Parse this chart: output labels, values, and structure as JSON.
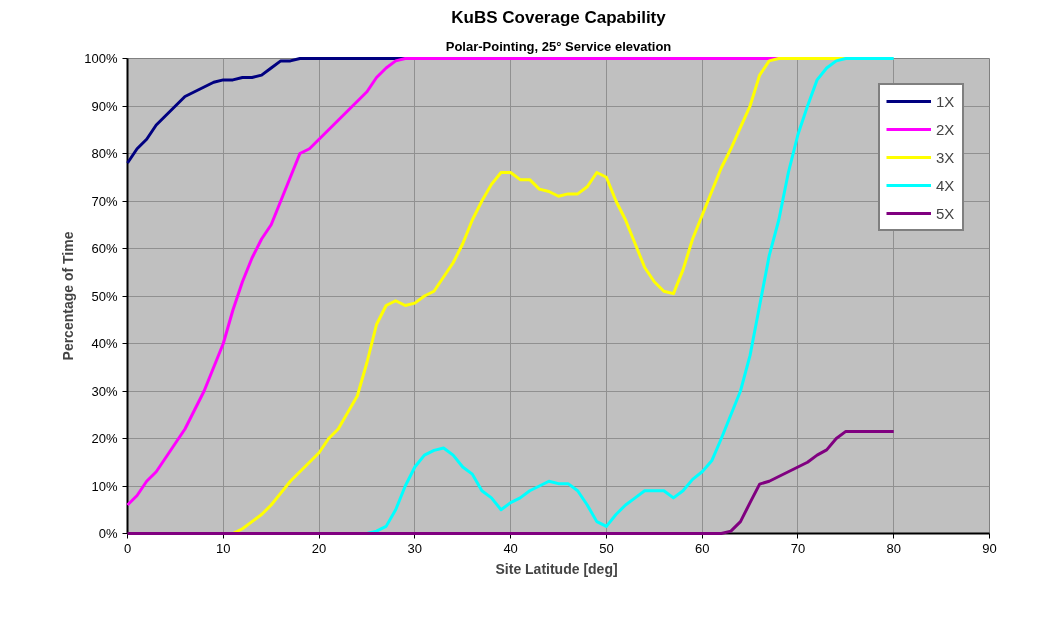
{
  "chart_data": {
    "type": "line",
    "title": "KuBS Coverage Capability",
    "subtitle": "Polar-Pointing, 25° Service elevation",
    "xlabel": "Site Latitude  [deg]",
    "ylabel": "Percentage of Time",
    "x": [
      0,
      1,
      2,
      3,
      4,
      5,
      6,
      7,
      8,
      9,
      10,
      11,
      12,
      13,
      14,
      15,
      16,
      17,
      18,
      19,
      20,
      21,
      22,
      23,
      24,
      25,
      26,
      27,
      28,
      29,
      30,
      31,
      32,
      33,
      34,
      35,
      36,
      37,
      38,
      39,
      40,
      41,
      42,
      43,
      44,
      45,
      46,
      47,
      48,
      49,
      50,
      51,
      52,
      53,
      54,
      55,
      56,
      57,
      58,
      59,
      60,
      61,
      62,
      63,
      64,
      65,
      66,
      67,
      68,
      69,
      70,
      71,
      72,
      73,
      74,
      75,
      76,
      77,
      78,
      79,
      80
    ],
    "series": [
      {
        "name": "1X",
        "color": "#000080",
        "values": [
          78,
          81,
          83,
          86,
          88,
          90,
          92,
          93,
          94,
          95,
          95.5,
          95.5,
          96,
          96,
          96.5,
          98,
          99.5,
          99.5,
          100,
          100,
          100,
          100,
          100,
          100,
          100,
          100,
          100,
          100,
          100,
          100,
          null,
          null,
          null,
          null,
          null,
          null,
          null,
          null,
          null,
          null,
          null,
          null,
          null,
          null,
          null,
          null,
          null,
          null,
          null,
          null,
          null,
          null,
          null,
          null,
          null,
          null,
          null,
          null,
          null,
          null,
          null,
          null,
          null,
          null,
          null,
          null,
          null,
          null,
          null,
          null,
          null,
          null,
          null,
          null,
          null,
          null,
          null,
          null,
          null,
          null,
          null
        ]
      },
      {
        "name": "2X",
        "color": "#ff00ff",
        "values": [
          6,
          8,
          11,
          13,
          16,
          19,
          22,
          26,
          30,
          35,
          40,
          47,
          53,
          58,
          62,
          65,
          70,
          75,
          80,
          81,
          83,
          85,
          87,
          89,
          91,
          93,
          96,
          98,
          99.5,
          100,
          100,
          100,
          100,
          100,
          100,
          100,
          100,
          100,
          100,
          100,
          100,
          100,
          100,
          100,
          100,
          100,
          100,
          100,
          100,
          100,
          100,
          100,
          100,
          100,
          100,
          100,
          100,
          100,
          100,
          100,
          100,
          100,
          100,
          100,
          100,
          100,
          100,
          100,
          100,
          null,
          null,
          null,
          null,
          null,
          null,
          null,
          null,
          null,
          null,
          null,
          null
        ]
      },
      {
        "name": "3X",
        "color": "#ffff00",
        "values": [
          null,
          null,
          null,
          null,
          null,
          null,
          null,
          null,
          null,
          null,
          null,
          0,
          1,
          2.5,
          4,
          6,
          8.5,
          11,
          13,
          15,
          17,
          20,
          22,
          25.5,
          29,
          36,
          44,
          48,
          49,
          48,
          48.5,
          50,
          51,
          54,
          57,
          61,
          66,
          70,
          73.5,
          76,
          76,
          74.5,
          74.5,
          72.5,
          72,
          71,
          71.5,
          71.5,
          73,
          76,
          75,
          70,
          66,
          61,
          56,
          53,
          51,
          50.5,
          55.5,
          62,
          67,
          72,
          77,
          81,
          85.5,
          90,
          96.5,
          99.5,
          100,
          100,
          100,
          100,
          100,
          100,
          100,
          100,
          null,
          null,
          null,
          null,
          null
        ]
      },
      {
        "name": "4X",
        "color": "#00ffff",
        "values": [
          null,
          null,
          null,
          null,
          null,
          null,
          null,
          null,
          null,
          null,
          null,
          null,
          null,
          null,
          null,
          null,
          null,
          null,
          null,
          null,
          null,
          null,
          null,
          null,
          null,
          0,
          0.5,
          1.5,
          5,
          10,
          14,
          16.5,
          17.5,
          18,
          16.5,
          14,
          12.5,
          9,
          7.5,
          5,
          6.5,
          7.5,
          9,
          10,
          11,
          10.5,
          10.5,
          9,
          6,
          2.5,
          1.5,
          4,
          6,
          7.5,
          9,
          9,
          9,
          7.5,
          9,
          11.4,
          13,
          15.3,
          20,
          25,
          30,
          37.5,
          48,
          58.5,
          66,
          76,
          84,
          90,
          95.5,
          98,
          99.5,
          100,
          100,
          100,
          100,
          100,
          100
        ]
      },
      {
        "name": "5X",
        "color": "#800080",
        "values": [
          0,
          0,
          0,
          0,
          0,
          0,
          0,
          0,
          0,
          0,
          0,
          0,
          0,
          0,
          0,
          0,
          0,
          0,
          0,
          0,
          0,
          0,
          0,
          0,
          0,
          0,
          0,
          0,
          0,
          0,
          0,
          0,
          0,
          0,
          0,
          0,
          0,
          0,
          0,
          0,
          0,
          0,
          0,
          0,
          0,
          0,
          0,
          0,
          0,
          0,
          0,
          0,
          0,
          0,
          0,
          0,
          0,
          0,
          0,
          0,
          0,
          0,
          0,
          0.5,
          2.5,
          6.5,
          10.4,
          11,
          12,
          13,
          14,
          15,
          16.5,
          17.6,
          20,
          21.5,
          21.5,
          21.5,
          21.5,
          21.5,
          21.5
        ]
      }
    ],
    "xlim": [
      0,
      90
    ],
    "xticks": [
      0,
      10,
      20,
      30,
      40,
      50,
      60,
      70,
      80,
      90
    ],
    "ylim": [
      0,
      100
    ],
    "yticks": [
      {
        "value": 0,
        "label": "0%"
      },
      {
        "value": 10,
        "label": "10%"
      },
      {
        "value": 20,
        "label": "20%"
      },
      {
        "value": 30,
        "label": "30%"
      },
      {
        "value": 40,
        "label": "40%"
      },
      {
        "value": 50,
        "label": "50%"
      },
      {
        "value": 60,
        "label": "60%"
      },
      {
        "value": 70,
        "label": "70%"
      },
      {
        "value": 80,
        "label": "80%"
      },
      {
        "value": 90,
        "label": "90%"
      },
      {
        "value": 100,
        "label": "100%"
      }
    ],
    "grid": true,
    "legend": "top right",
    "marker": "none",
    "line_style": "solid"
  }
}
